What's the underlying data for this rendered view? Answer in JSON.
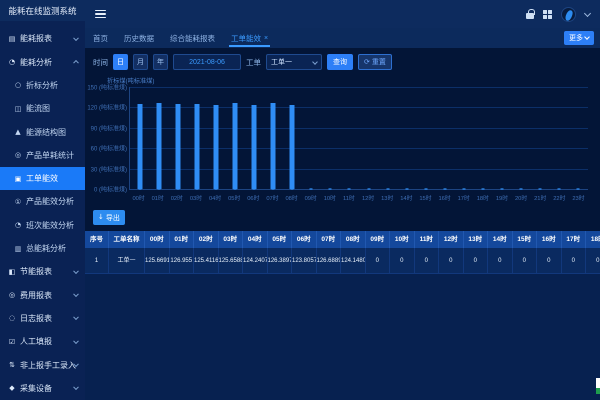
{
  "app": {
    "title": "能耗在线监测系统"
  },
  "sidebar": {
    "items": [
      {
        "label": "能耗报表",
        "icon": "▤",
        "icon_name": "report-icon",
        "type": "group",
        "chevron": "down"
      },
      {
        "label": "能耗分析",
        "icon": "◔",
        "icon_name": "analysis-icon",
        "type": "group",
        "chevron": "up"
      },
      {
        "label": "折标分析",
        "icon": "○",
        "icon_name": "conversion-analysis-icon",
        "type": "sub"
      },
      {
        "label": "能流图",
        "icon": "◫",
        "icon_name": "energy-flow-icon",
        "type": "sub"
      },
      {
        "label": "能源结构图",
        "icon": "▲",
        "icon_name": "energy-structure-icon",
        "type": "sub"
      },
      {
        "label": "产品单耗统计",
        "icon": "◎",
        "icon_name": "product-unit-stats-icon",
        "type": "sub"
      },
      {
        "label": "工单能效",
        "icon": "▣",
        "icon_name": "workorder-efficiency-icon",
        "type": "sub",
        "active": true
      },
      {
        "label": "产品能效分析",
        "icon": "①",
        "icon_name": "product-efficiency-icon",
        "type": "sub"
      },
      {
        "label": "班次能效分析",
        "icon": "◔",
        "icon_name": "shift-efficiency-icon",
        "type": "sub"
      },
      {
        "label": "总能耗分析",
        "icon": "▥",
        "icon_name": "total-energy-icon",
        "type": "sub"
      },
      {
        "label": "节能报表",
        "icon": "◧",
        "icon_name": "energy-saving-report-icon",
        "type": "group",
        "chevron": "down"
      },
      {
        "label": "费用报表",
        "icon": "◎",
        "icon_name": "cost-report-icon",
        "type": "group",
        "chevron": "down"
      },
      {
        "label": "日志报表",
        "icon": "◌",
        "icon_name": "log-report-icon",
        "type": "group",
        "chevron": "down"
      },
      {
        "label": "人工填报",
        "icon": "☑",
        "icon_name": "manual-fill-icon",
        "type": "group",
        "chevron": "down"
      },
      {
        "label": "非上报手工录入",
        "icon": "⇅",
        "icon_name": "offline-entry-icon",
        "type": "group",
        "chevron": "down"
      },
      {
        "label": "采集设备",
        "icon": "◆",
        "icon_name": "collection-device-icon",
        "type": "group",
        "chevron": "down"
      }
    ]
  },
  "tabbar": {
    "tabs": [
      {
        "label": "首页"
      },
      {
        "label": "历史数据"
      },
      {
        "label": "综合能耗报表"
      },
      {
        "label": "工单能效",
        "active": true,
        "closable": true
      }
    ],
    "more_label": "更多"
  },
  "filters": {
    "time_label": "时间",
    "period_options": [
      "日",
      "月",
      "年"
    ],
    "active_period": "日",
    "date_value": "2021-08-06",
    "workorder_label": "工单",
    "workorder_value": "工单一",
    "query_label": "查询",
    "reset_label": "重置",
    "reset_icon": "⟳"
  },
  "chart_data": {
    "type": "bar",
    "title": "折标煤(吨标准煤)",
    "x": [
      "00时",
      "01时",
      "02时",
      "03时",
      "04时",
      "05时",
      "06时",
      "07时",
      "08时",
      "09时",
      "10时",
      "11时",
      "12时",
      "13时",
      "14时",
      "15时",
      "16时",
      "17时",
      "18时",
      "19时",
      "20时",
      "21时",
      "22时",
      "23时"
    ],
    "values": [
      125.669147,
      126.955,
      125.411654,
      125.65884,
      124.240794,
      126.389719,
      123.80573,
      126.688912,
      124.148023,
      0,
      0,
      0,
      0,
      0,
      0,
      0,
      0,
      0,
      0,
      0,
      0,
      0,
      0,
      0
    ],
    "ylim": [
      0,
      150
    ],
    "yticks": [
      150,
      120,
      90,
      60,
      30,
      0
    ],
    "ytick_unit": "(吨标准煤)",
    "bar_color": "#2f8df5",
    "grid": true,
    "legend": false
  },
  "export": {
    "label": "导出",
    "icon": "↓"
  },
  "table": {
    "headers": [
      "序号",
      "工单名称",
      "00时",
      "01时",
      "02时",
      "03时",
      "04时",
      "05时",
      "06时",
      "07时",
      "08时",
      "09时",
      "10时",
      "11时",
      "12时",
      "13时",
      "14时",
      "15时",
      "16时",
      "17时",
      "18时"
    ],
    "rows": [
      [
        "1",
        "工单一",
        "125.669147",
        "126.955",
        "125.411654",
        "125.65884",
        "124.240794",
        "126.389719",
        "123.80573",
        "126.688912",
        "124.148023",
        "0",
        "0",
        "0",
        "0",
        "0",
        "0",
        "0",
        "0",
        "0",
        "0"
      ]
    ]
  }
}
